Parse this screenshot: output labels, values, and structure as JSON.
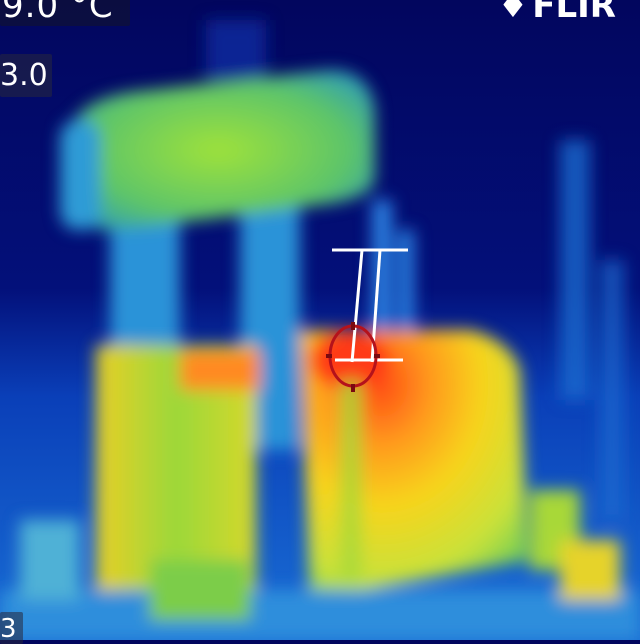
{
  "hud": {
    "temperature_readout": "9.0 °C",
    "scale_value": "3.0",
    "bottom_label": "3",
    "brand": "FLIR"
  },
  "icons": {
    "brand_logo": "flame-logo-icon",
    "reticle": "crosshair-icon"
  },
  "colors": {
    "cold": "#02065e",
    "cool": "#1c8be6",
    "mid": "#7fd23a",
    "warm": "#f5d21a",
    "hot": "#ff5a1a",
    "reticle": "#b5121b"
  }
}
